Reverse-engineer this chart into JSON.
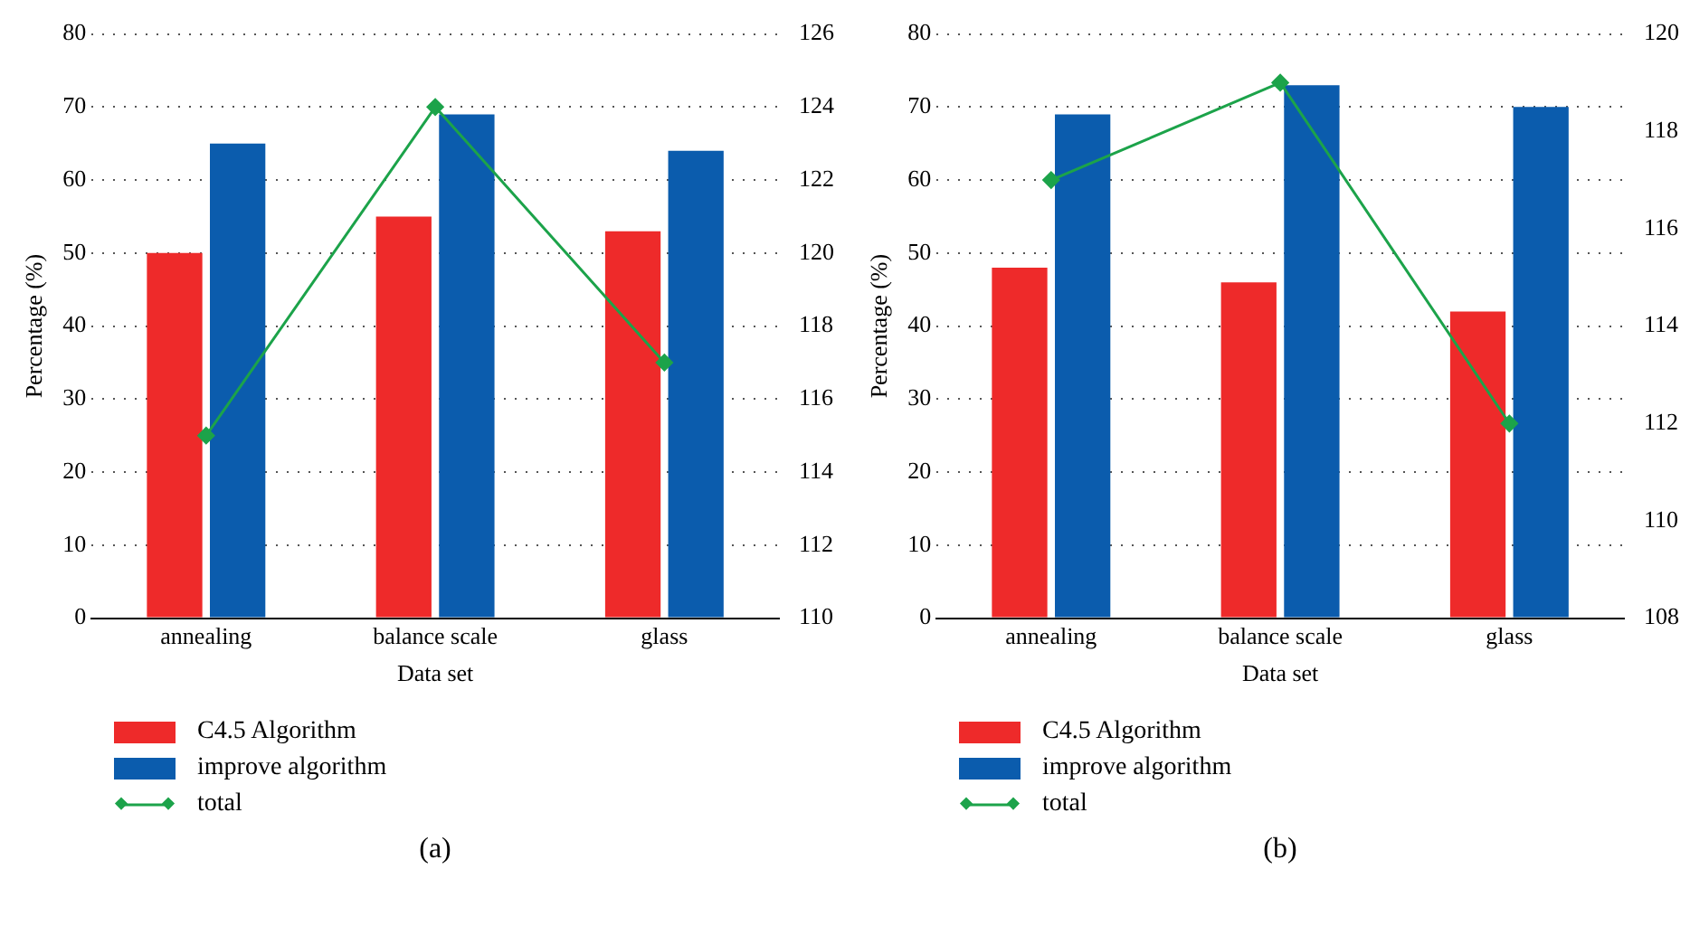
{
  "chart_data": [
    {
      "type": "bar",
      "categories": [
        "annealing",
        "balance scale",
        "glass"
      ],
      "xlabel": "Data set",
      "ylabel": "Percentage (%)",
      "ylim": [
        0,
        80
      ],
      "yticks": [
        0,
        10,
        20,
        30,
        40,
        50,
        60,
        70,
        80
      ],
      "y2lim": [
        110,
        126
      ],
      "y2ticks": [
        110,
        112,
        114,
        116,
        118,
        120,
        122,
        124,
        126
      ],
      "grid": "y",
      "legend": "bottom",
      "annotations": [
        "(a)"
      ],
      "series": [
        {
          "name": "C4.5 Algorithm",
          "color": "#ee2a2a",
          "values": [
            50,
            55,
            53
          ]
        },
        {
          "name": "improve algorithm",
          "color": "#0b5cad",
          "values": [
            65,
            69,
            64
          ]
        },
        {
          "name": "total",
          "type": "line",
          "axis": "y2",
          "marker": "diamond",
          "color": "#1ca34a",
          "values": [
            115,
            124,
            117
          ]
        }
      ]
    },
    {
      "type": "bar",
      "categories": [
        "annealing",
        "balance scale",
        "glass"
      ],
      "xlabel": "Data set",
      "ylabel": "Percentage (%)",
      "ylim": [
        0,
        80
      ],
      "yticks": [
        0,
        10,
        20,
        30,
        40,
        50,
        60,
        70,
        80
      ],
      "y2lim": [
        108,
        120
      ],
      "y2ticks": [
        108,
        110,
        112,
        114,
        116,
        118,
        120
      ],
      "grid": "y",
      "legend": "bottom",
      "annotations": [
        "(b)"
      ],
      "series": [
        {
          "name": "C4.5 Algorithm",
          "color": "#ee2a2a",
          "values": [
            48,
            46,
            42
          ]
        },
        {
          "name": "improve algorithm",
          "color": "#0b5cad",
          "values": [
            69,
            73,
            70
          ]
        },
        {
          "name": "total",
          "type": "line",
          "axis": "y2",
          "marker": "diamond",
          "color": "#1ca34a",
          "values": [
            117,
            119,
            112
          ]
        }
      ]
    }
  ]
}
